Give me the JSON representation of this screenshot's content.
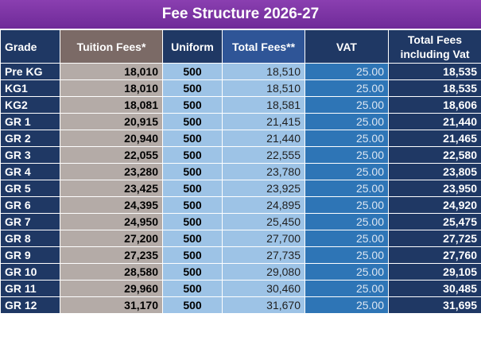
{
  "title": "Fee Structure 2026-27",
  "headers": {
    "grade": "Grade",
    "tuition": "Tuition Fees*",
    "uniform": "Uniform",
    "total": "Total Fees**",
    "vat": "VAT",
    "grand": "Total Fees including Vat"
  },
  "rows": [
    {
      "grade": "Pre KG",
      "tuition": "18,010",
      "uniform": "500",
      "total": "18,510",
      "vat": "25.00",
      "grand": "18,535"
    },
    {
      "grade": "KG1",
      "tuition": "18,010",
      "uniform": "500",
      "total": "18,510",
      "vat": "25.00",
      "grand": "18,535"
    },
    {
      "grade": "KG2",
      "tuition": "18,081",
      "uniform": "500",
      "total": "18,581",
      "vat": "25.00",
      "grand": "18,606"
    },
    {
      "grade": "GR 1",
      "tuition": "20,915",
      "uniform": "500",
      "total": "21,415",
      "vat": "25.00",
      "grand": "21,440"
    },
    {
      "grade": "GR 2",
      "tuition": "20,940",
      "uniform": "500",
      "total": "21,440",
      "vat": "25.00",
      "grand": "21,465"
    },
    {
      "grade": "GR 3",
      "tuition": "22,055",
      "uniform": "500",
      "total": "22,555",
      "vat": "25.00",
      "grand": "22,580"
    },
    {
      "grade": "GR 4",
      "tuition": "23,280",
      "uniform": "500",
      "total": "23,780",
      "vat": "25.00",
      "grand": "23,805"
    },
    {
      "grade": "GR 5",
      "tuition": "23,425",
      "uniform": "500",
      "total": "23,925",
      "vat": "25.00",
      "grand": "23,950"
    },
    {
      "grade": "GR 6",
      "tuition": "24,395",
      "uniform": "500",
      "total": "24,895",
      "vat": "25.00",
      "grand": "24,920"
    },
    {
      "grade": "GR 7",
      "tuition": "24,950",
      "uniform": "500",
      "total": "25,450",
      "vat": "25.00",
      "grand": "25,475"
    },
    {
      "grade": "GR 8",
      "tuition": "27,200",
      "uniform": "500",
      "total": "27,700",
      "vat": "25.00",
      "grand": "27,725"
    },
    {
      "grade": "GR 9",
      "tuition": "27,235",
      "uniform": "500",
      "total": "27,735",
      "vat": "25.00",
      "grand": "27,760"
    },
    {
      "grade": "GR 10",
      "tuition": "28,580",
      "uniform": "500",
      "total": "29,080",
      "vat": "25.00",
      "grand": "29,105"
    },
    {
      "grade": "GR 11",
      "tuition": "29,960",
      "uniform": "500",
      "total": "30,460",
      "vat": "25.00",
      "grand": "30,485"
    },
    {
      "grade": "GR 12",
      "tuition": "31,170",
      "uniform": "500",
      "total": "31,670",
      "vat": "25.00",
      "grand": "31,695"
    }
  ],
  "colors": {
    "title_bg": "#7a33a6",
    "header_bg": "#1f3864",
    "tuition_bg": "#b4aba7",
    "uniform_bg": "#9dc3e6",
    "vat_bg": "#2e75b6"
  }
}
